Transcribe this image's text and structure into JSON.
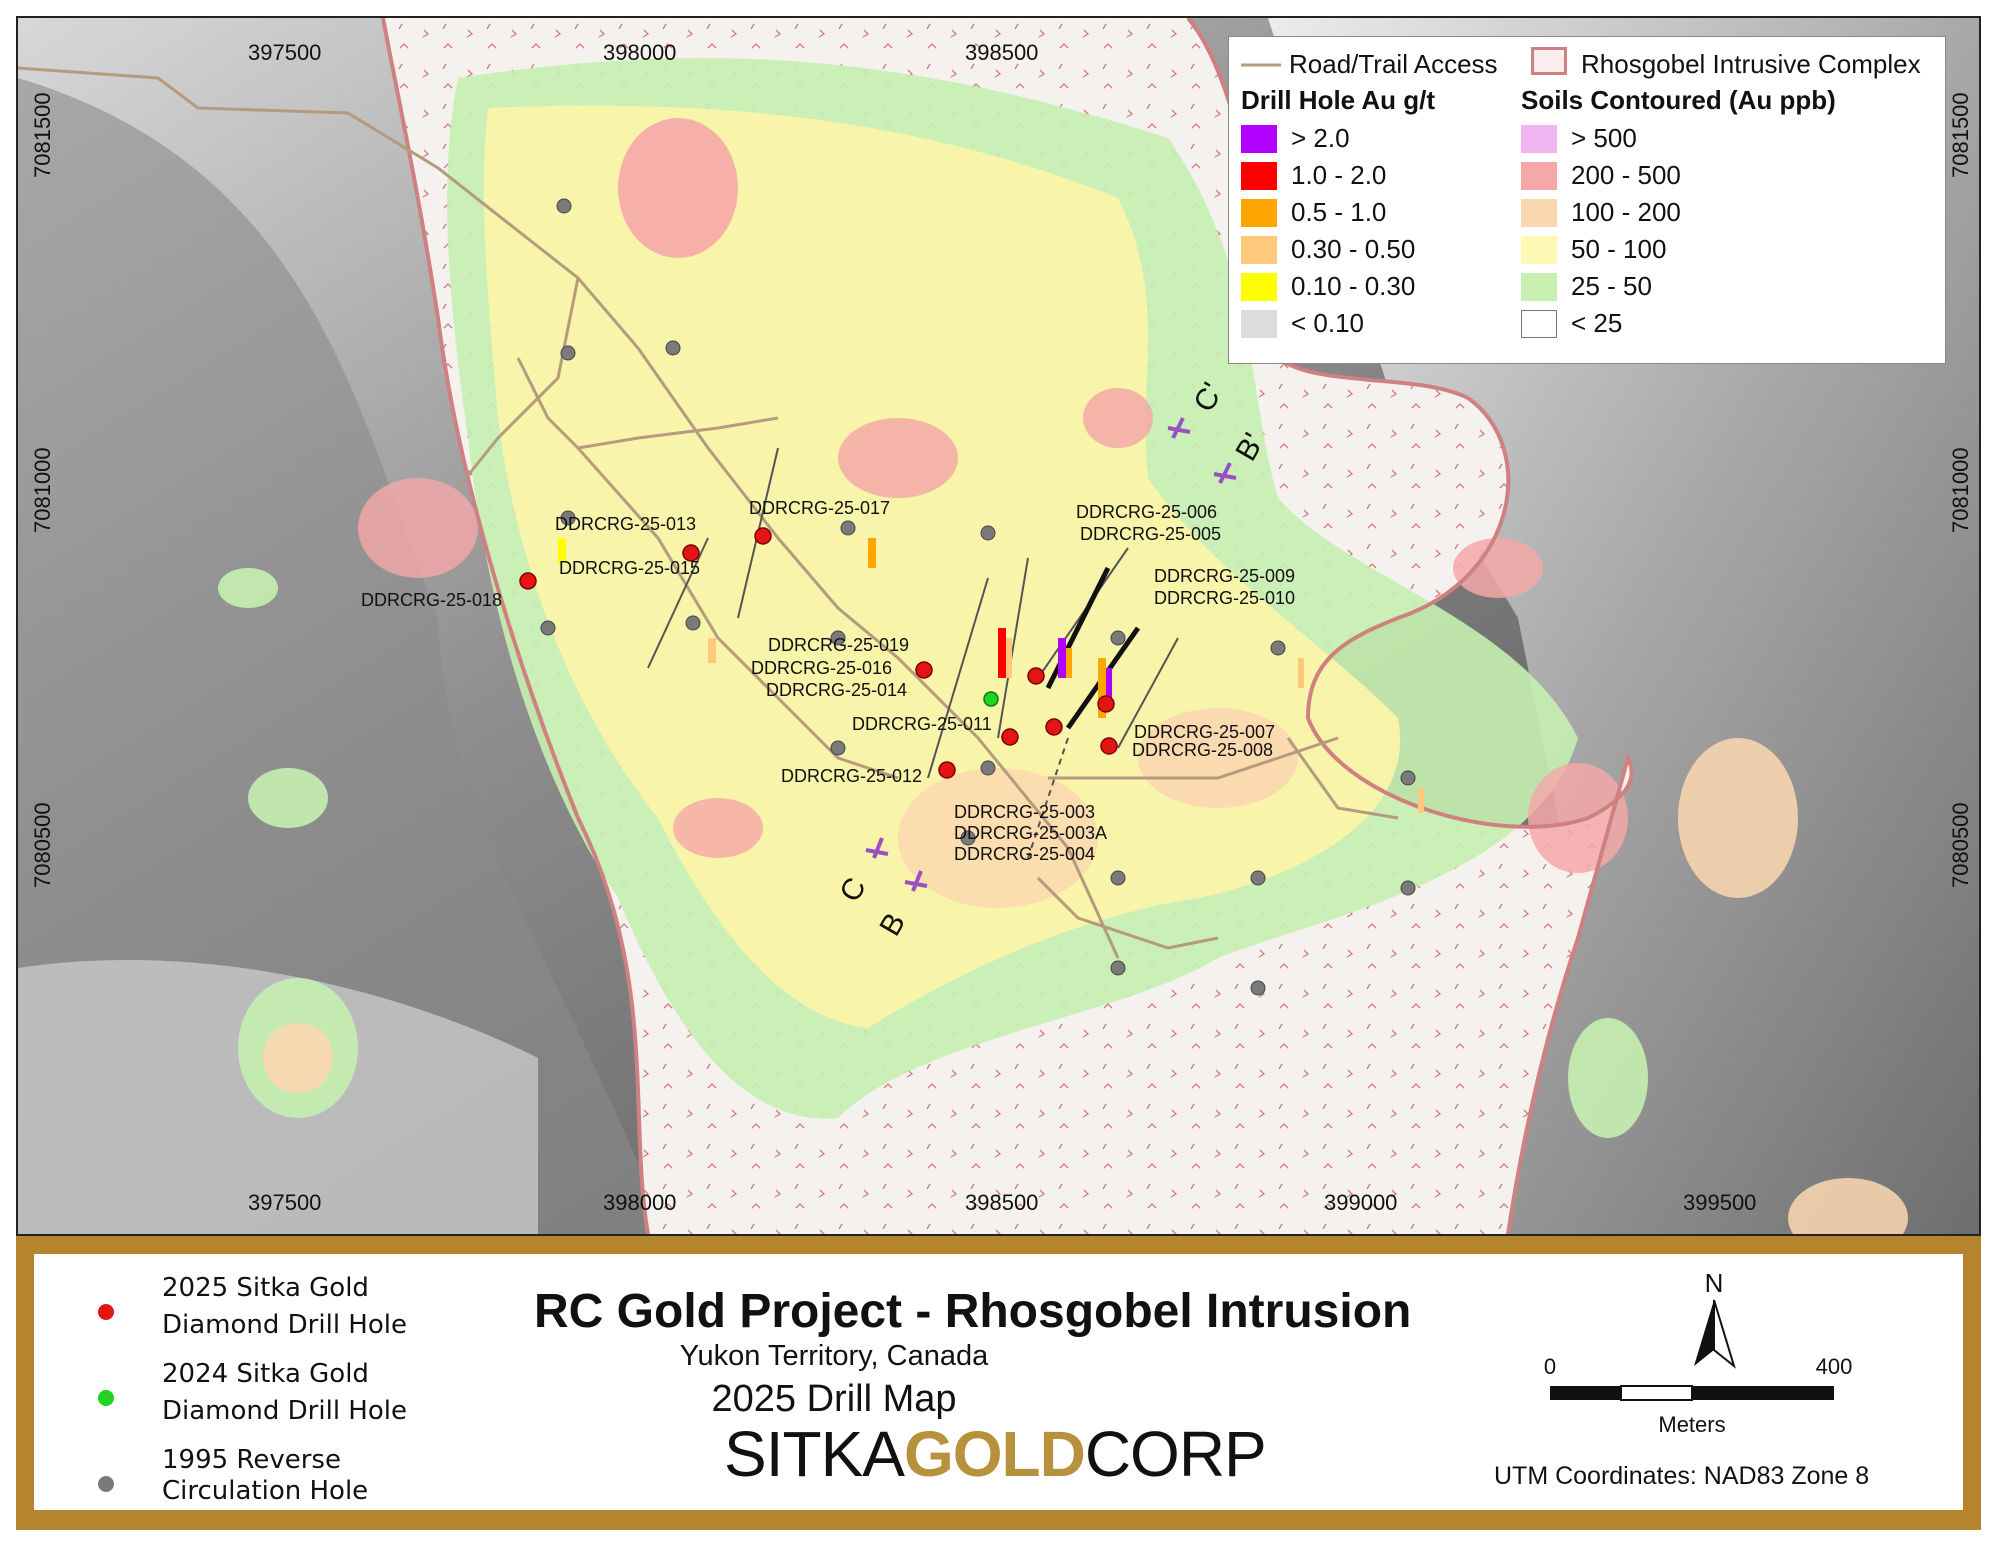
{
  "map": {
    "x_ticks_top": [
      "397500",
      "398000",
      "398500"
    ],
    "x_ticks_bottom": [
      "397500",
      "398000",
      "398500",
      "399000",
      "399500"
    ],
    "y_ticks_left": [
      "7081500",
      "7081000",
      "7080500"
    ],
    "y_ticks_right": [
      "7081500",
      "7081000",
      "7080500"
    ],
    "hole_labels": [
      "DDRCRG-25-013",
      "DDRCRG-25-017",
      "DDRCRG-25-015",
      "DDRCRG-25-018",
      "DDRCRG-25-006",
      "DDRCRG-25-005",
      "DDRCRG-25-009",
      "DDRCRG-25-010",
      "DDRCRG-25-019",
      "DDRCRG-25-016",
      "DDRCRG-25-014",
      "DDRCRG-25-011",
      "DDRCRG-25-012",
      "DDRCRG-25-007",
      "DDRCRG-25-008",
      "DDRCRG-25-003",
      "DDRCRG-25-003A",
      "DDRCRG-25-004"
    ],
    "section_labels": [
      "C'",
      "B'",
      "C",
      "B"
    ],
    "colors": {
      "soil_pink": "#ee9aa8",
      "soil_orange": "#f6c98f",
      "soil_yellow": "#f4f19a",
      "soil_green": "#b9e6a0",
      "intrusive_outline": "#cf8080",
      "road": "#b59a7e",
      "drill_2025": "#e41414",
      "drill_2024": "#21d421",
      "drill_1995": "#7a7a7a",
      "section_marker": "#9b4fc4"
    }
  },
  "legend": {
    "road_label": "Road/Trail Access",
    "intrusive_label": "Rhosgobel Intrusive Complex",
    "drill_title": "Drill Hole Au g/t",
    "soils_title": "Soils Contoured (Au ppb)",
    "drill_classes": [
      {
        "label": "> 2.0",
        "color": "#b000ff"
      },
      {
        "label": "1.0 - 2.0",
        "color": "#ff0000"
      },
      {
        "label": "0.5 - 1.0",
        "color": "#ffa500"
      },
      {
        "label": "0.30 - 0.50",
        "color": "#ffc87a"
      },
      {
        "label": "0.10 - 0.30",
        "color": "#ffff00"
      },
      {
        "label": "< 0.10",
        "color": "#dcdcdc"
      }
    ],
    "soil_classes": [
      {
        "label": "> 500",
        "color": "#f0b6f2"
      },
      {
        "label": "200 - 500",
        "color": "#f5a8a8"
      },
      {
        "label": "100 - 200",
        "color": "#fbd7b0"
      },
      {
        "label": "50 - 100",
        "color": "#fdf8b3"
      },
      {
        "label": "25 - 50",
        "color": "#c6efb0"
      },
      {
        "label": "< 25",
        "color": "#ffffff"
      }
    ]
  },
  "footer": {
    "legend_2025_line1": "2025 Sitka Gold",
    "legend_2025_line2": "Diamond Drill Hole",
    "legend_2024_line1": "2024 Sitka Gold",
    "legend_2024_line2": "Diamond Drill Hole",
    "legend_1995_line1": "1995 Reverse",
    "legend_1995_line2": "Circulation Hole",
    "title": "RC Gold Project - Rhosgobel Intrusion",
    "subtitle": "Yukon Territory, Canada",
    "map_type": "2025 Drill Map",
    "logo_word1": "SITKA",
    "logo_word2": "GOLD",
    "logo_word3": "CORP",
    "north": "N",
    "scale_start": "0",
    "scale_end": "400",
    "scale_units": "Meters",
    "utm": "UTM Coordinates: NAD83 Zone 8"
  }
}
